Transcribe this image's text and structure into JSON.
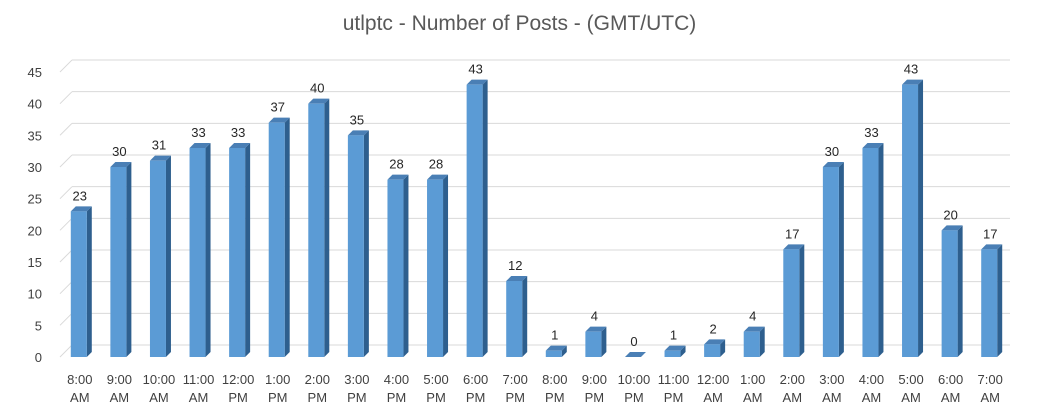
{
  "chart_data": {
    "type": "bar",
    "title": "utlptc - Number of Posts - (GMT/UTC)",
    "categories": [
      [
        "8:00",
        "AM"
      ],
      [
        "9:00",
        "AM"
      ],
      [
        "10:00",
        "AM"
      ],
      [
        "11:00",
        "AM"
      ],
      [
        "12:00",
        "PM"
      ],
      [
        "1:00",
        "PM"
      ],
      [
        "2:00",
        "PM"
      ],
      [
        "3:00",
        "PM"
      ],
      [
        "4:00",
        "PM"
      ],
      [
        "5:00",
        "PM"
      ],
      [
        "6:00",
        "PM"
      ],
      [
        "7:00",
        "PM"
      ],
      [
        "8:00",
        "PM"
      ],
      [
        "9:00",
        "PM"
      ],
      [
        "10:00",
        "PM"
      ],
      [
        "11:00",
        "PM"
      ],
      [
        "12:00",
        "AM"
      ],
      [
        "1:00",
        "AM"
      ],
      [
        "2:00",
        "AM"
      ],
      [
        "3:00",
        "AM"
      ],
      [
        "4:00",
        "AM"
      ],
      [
        "5:00",
        "AM"
      ],
      [
        "6:00",
        "AM"
      ],
      [
        "7:00",
        "AM"
      ]
    ],
    "values": [
      23,
      30,
      31,
      33,
      33,
      37,
      40,
      35,
      28,
      28,
      43,
      12,
      1,
      4,
      0,
      1,
      2,
      4,
      17,
      30,
      33,
      43,
      20,
      17
    ],
    "yticks": [
      0,
      5,
      10,
      15,
      20,
      25,
      30,
      35,
      40,
      45
    ],
    "ylim": [
      0,
      45
    ],
    "grid": true,
    "data_labels": true,
    "style": "3d-column",
    "colors": {
      "bar_front": "#5B9BD5",
      "bar_side": "#2E5F8E",
      "bar_top": "#4A7FB5",
      "grid": "#D9D9D9"
    }
  }
}
